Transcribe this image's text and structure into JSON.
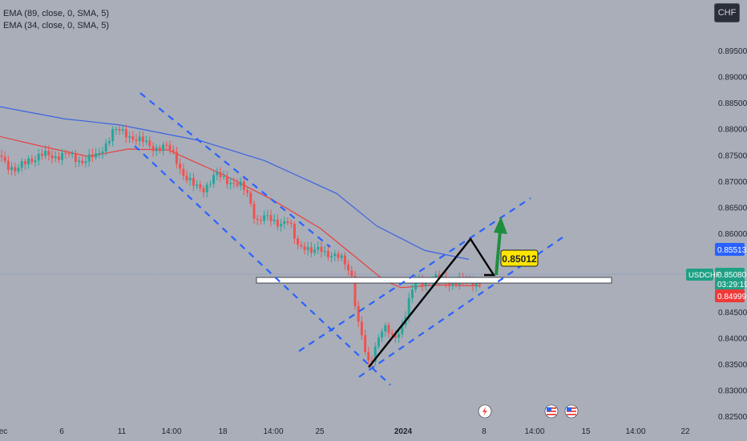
{
  "legend": {
    "ema89": "EMA (89, close, 0, SMA, 5)",
    "ema34": "EMA (34, close, 0, SMA, 5)"
  },
  "currency_button": "CHF",
  "symbol_label": "USDCHF",
  "countdown": "03:29:19",
  "annotation_price": "0.85012",
  "colors": {
    "background": "#a9aeb9",
    "up": "#26a69a",
    "down": "#ef5350",
    "ema89": "#3d63e0",
    "ema34": "#e8423f",
    "channel": "#2962ff",
    "label_blue": "#2962ff",
    "label_red": "#ef3a3a",
    "label_green": "#1fa085",
    "annotation_bg": "#ffe600",
    "arrow": "#1e8e3e"
  },
  "chart_data": {
    "type": "candlestick",
    "symbol": "USDCHF",
    "y_ticks": [
      "0.89500",
      "0.89000",
      "0.88500",
      "0.88000",
      "0.87500",
      "0.87000",
      "0.86500",
      "0.86000",
      "0.84500",
      "0.84000",
      "0.83500",
      "0.83000",
      "0.82500"
    ],
    "y_range": [
      0.8248,
      0.8992
    ],
    "x_ticks": [
      "ec",
      "6",
      "11",
      "14:00",
      "18",
      "14:00",
      "25",
      "2024",
      "8",
      "14:00",
      "15",
      "14:00",
      "22"
    ],
    "price_labels": [
      {
        "value": "0.85513",
        "role": "ema89"
      },
      {
        "value": "0.85080",
        "role": "last"
      },
      {
        "value": "0.84999",
        "role": "ema34"
      }
    ],
    "ema89_path": [
      [
        0,
        0.8843
      ],
      [
        80,
        0.882
      ],
      [
        150,
        0.8808
      ],
      [
        250,
        0.8778
      ],
      [
        330,
        0.874
      ],
      [
        420,
        0.8677
      ],
      [
        470,
        0.8615
      ],
      [
        530,
        0.8568
      ],
      [
        585,
        0.8551
      ]
    ],
    "ema34_path": [
      [
        0,
        0.8786
      ],
      [
        50,
        0.8768
      ],
      [
        110,
        0.8748
      ],
      [
        160,
        0.8762
      ],
      [
        210,
        0.876
      ],
      [
        280,
        0.8712
      ],
      [
        340,
        0.8665
      ],
      [
        400,
        0.861
      ],
      [
        440,
        0.856
      ],
      [
        480,
        0.851
      ],
      [
        500,
        0.8497
      ],
      [
        545,
        0.8502
      ],
      [
        600,
        0.85
      ]
    ],
    "close_path": [
      [
        2,
        0.875
      ],
      [
        20,
        0.8715
      ],
      [
        35,
        0.8745
      ],
      [
        55,
        0.8748
      ],
      [
        75,
        0.8752
      ],
      [
        100,
        0.8742
      ],
      [
        120,
        0.8745
      ],
      [
        140,
        0.8795
      ],
      [
        160,
        0.8792
      ],
      [
        175,
        0.8775
      ],
      [
        190,
        0.8768
      ],
      [
        210,
        0.8762
      ],
      [
        220,
        0.8745
      ],
      [
        230,
        0.871
      ],
      [
        240,
        0.869
      ],
      [
        255,
        0.869
      ],
      [
        270,
        0.871
      ],
      [
        285,
        0.8705
      ],
      [
        300,
        0.8688
      ],
      [
        310,
        0.8675
      ],
      [
        320,
        0.8625
      ],
      [
        330,
        0.8628
      ],
      [
        345,
        0.8625
      ],
      [
        360,
        0.862
      ],
      [
        370,
        0.858
      ],
      [
        380,
        0.858
      ],
      [
        390,
        0.856
      ],
      [
        400,
        0.857
      ],
      [
        410,
        0.8565
      ],
      [
        420,
        0.8555
      ],
      [
        432,
        0.854
      ],
      [
        440,
        0.852
      ],
      [
        445,
        0.844
      ],
      [
        452,
        0.84
      ],
      [
        458,
        0.8345
      ],
      [
        465,
        0.8365
      ],
      [
        472,
        0.841
      ],
      [
        480,
        0.842
      ],
      [
        490,
        0.8395
      ],
      [
        500,
        0.842
      ],
      [
        510,
        0.847
      ],
      [
        518,
        0.8505
      ],
      [
        530,
        0.851
      ],
      [
        540,
        0.8515
      ],
      [
        550,
        0.851
      ],
      [
        560,
        0.8508
      ],
      [
        570,
        0.851
      ],
      [
        580,
        0.8506
      ],
      [
        590,
        0.851
      ],
      [
        600,
        0.8508
      ]
    ],
    "resistance_zone": [
      0.8503,
      0.8496
    ],
    "annotation_level": 0.85012
  }
}
